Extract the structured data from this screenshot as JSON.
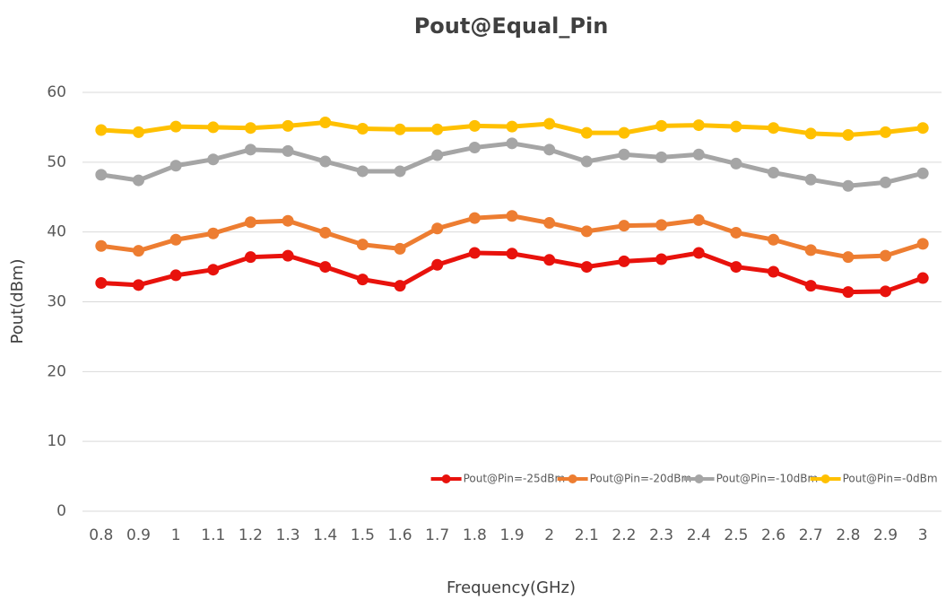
{
  "chart_data": {
    "type": "line",
    "title": "Pout@Equal_Pin",
    "x_label": "Frequency(GHz)",
    "y_label": "Pout(dBm)",
    "categories": [
      "0.8",
      "0.9",
      "1",
      "1.1",
      "1.2",
      "1.3",
      "1.4",
      "1.5",
      "1.6",
      "1.7",
      "1.8",
      "1.9",
      "2",
      "2.1",
      "2.2",
      "2.3",
      "2.4",
      "2.5",
      "2.6",
      "2.7",
      "2.8",
      "2.9",
      "3"
    ],
    "series": [
      {
        "name": "Pout@Pin=-25dBm",
        "color": "#e8120c",
        "values": [
          32.7,
          32.4,
          33.8,
          34.6,
          36.4,
          36.6,
          35.0,
          33.2,
          32.3,
          35.3,
          37.0,
          36.9,
          36.0,
          35.0,
          35.8,
          36.1,
          37.0,
          35.0,
          34.3,
          32.3,
          31.4,
          31.5,
          33.4
        ]
      },
      {
        "name": "Pout@Pin=-20dBm",
        "color": "#ed7d31",
        "values": [
          38.0,
          37.3,
          38.9,
          39.8,
          41.4,
          41.6,
          39.9,
          38.2,
          37.6,
          40.5,
          42.0,
          42.3,
          41.3,
          40.1,
          40.9,
          41.0,
          41.7,
          39.9,
          38.9,
          37.4,
          36.4,
          36.6,
          38.3
        ]
      },
      {
        "name": "Pout@Pin=-10dBm",
        "color": "#a5a5a5",
        "values": [
          48.2,
          47.4,
          49.5,
          50.4,
          51.8,
          51.6,
          50.1,
          48.7,
          48.7,
          51.0,
          52.1,
          52.7,
          51.8,
          50.1,
          51.1,
          50.7,
          51.1,
          49.8,
          48.5,
          47.5,
          46.6,
          47.1,
          48.4
        ]
      },
      {
        "name": "Pout@Pin=-0dBm",
        "color": "#ffc000",
        "values": [
          54.6,
          54.3,
          55.1,
          55.0,
          54.9,
          55.2,
          55.7,
          54.8,
          54.7,
          54.7,
          55.2,
          55.1,
          55.5,
          54.2,
          54.2,
          55.2,
          55.3,
          55.1,
          54.9,
          54.1,
          53.9,
          54.3,
          54.9
        ]
      }
    ],
    "ylim": [
      0,
      60
    ],
    "yticks": [
      0,
      10,
      20,
      30,
      40,
      50,
      60
    ],
    "grid": true,
    "legend": "bottom-right"
  }
}
